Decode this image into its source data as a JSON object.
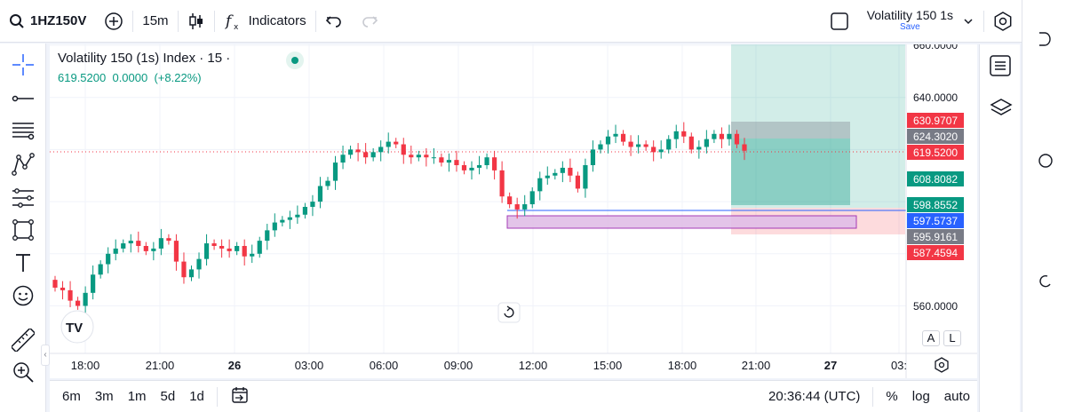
{
  "toolbar": {
    "symbol": "1HZ150V",
    "interval": "15m",
    "indicators_label": "Indicators",
    "layout_name": "Volatility 150 1s",
    "layout_status": "Save"
  },
  "legend": {
    "title": "Volatility 150 (1s) Index · 15 ·",
    "price": "619.5200",
    "change": "0.0000",
    "change_pct": "(+8.22%)"
  },
  "price_axis": {
    "ticks": [
      "660.0000",
      "640.0000",
      "560.0000"
    ],
    "labels": [
      {
        "value": "630.9707",
        "color": "#f23645"
      },
      {
        "value": "624.3020",
        "color": "#787b86"
      },
      {
        "value": "619.5200",
        "color": "#f23645"
      },
      {
        "value": "608.8082",
        "color": "#089981"
      },
      {
        "value": "598.8552",
        "color": "#089981"
      },
      {
        "value": "597.5737",
        "color": "#2962ff"
      },
      {
        "value": "595.9161",
        "color": "#787b86"
      },
      {
        "value": "587.4594",
        "color": "#f23645"
      }
    ]
  },
  "time_axis": [
    "18:00",
    "21:00",
    "26",
    "03:00",
    "06:00",
    "09:00",
    "12:00",
    "15:00",
    "18:00",
    "21:00",
    "27",
    "03:"
  ],
  "bottom": {
    "ranges": [
      "6m",
      "3m",
      "1m",
      "5d",
      "1d"
    ],
    "clock": "20:36:44 (UTC)",
    "pct": "%",
    "log": "log",
    "auto": "auto"
  },
  "scale_buttons": {
    "a": "A",
    "l": "L"
  },
  "colors": {
    "up": "#089981",
    "down": "#f23645",
    "accent": "#2962ff"
  },
  "chart_data": {
    "type": "candlestick",
    "yaxis_ticks": [
      660,
      640,
      560
    ],
    "candles_close": [
      567,
      566,
      562,
      560,
      565,
      572,
      576,
      580,
      582,
      584,
      585,
      583,
      581,
      582,
      586,
      585,
      577,
      571,
      574,
      578,
      584,
      583,
      582,
      581,
      583,
      579,
      580,
      585,
      589,
      592,
      593,
      594,
      595,
      598,
      600,
      606,
      608,
      615,
      618,
      620,
      619,
      617,
      619,
      621,
      623,
      622,
      618,
      617,
      618,
      617,
      617,
      615,
      616,
      614,
      612,
      613,
      614,
      617,
      612,
      602,
      599,
      597,
      599,
      604,
      609,
      610,
      611,
      613,
      610,
      605,
      614,
      620,
      622,
      625,
      626,
      623,
      621,
      622,
      621,
      619,
      620,
      624,
      627,
      625,
      620,
      621,
      624,
      626,
      624,
      626,
      622,
      619.52
    ]
  }
}
